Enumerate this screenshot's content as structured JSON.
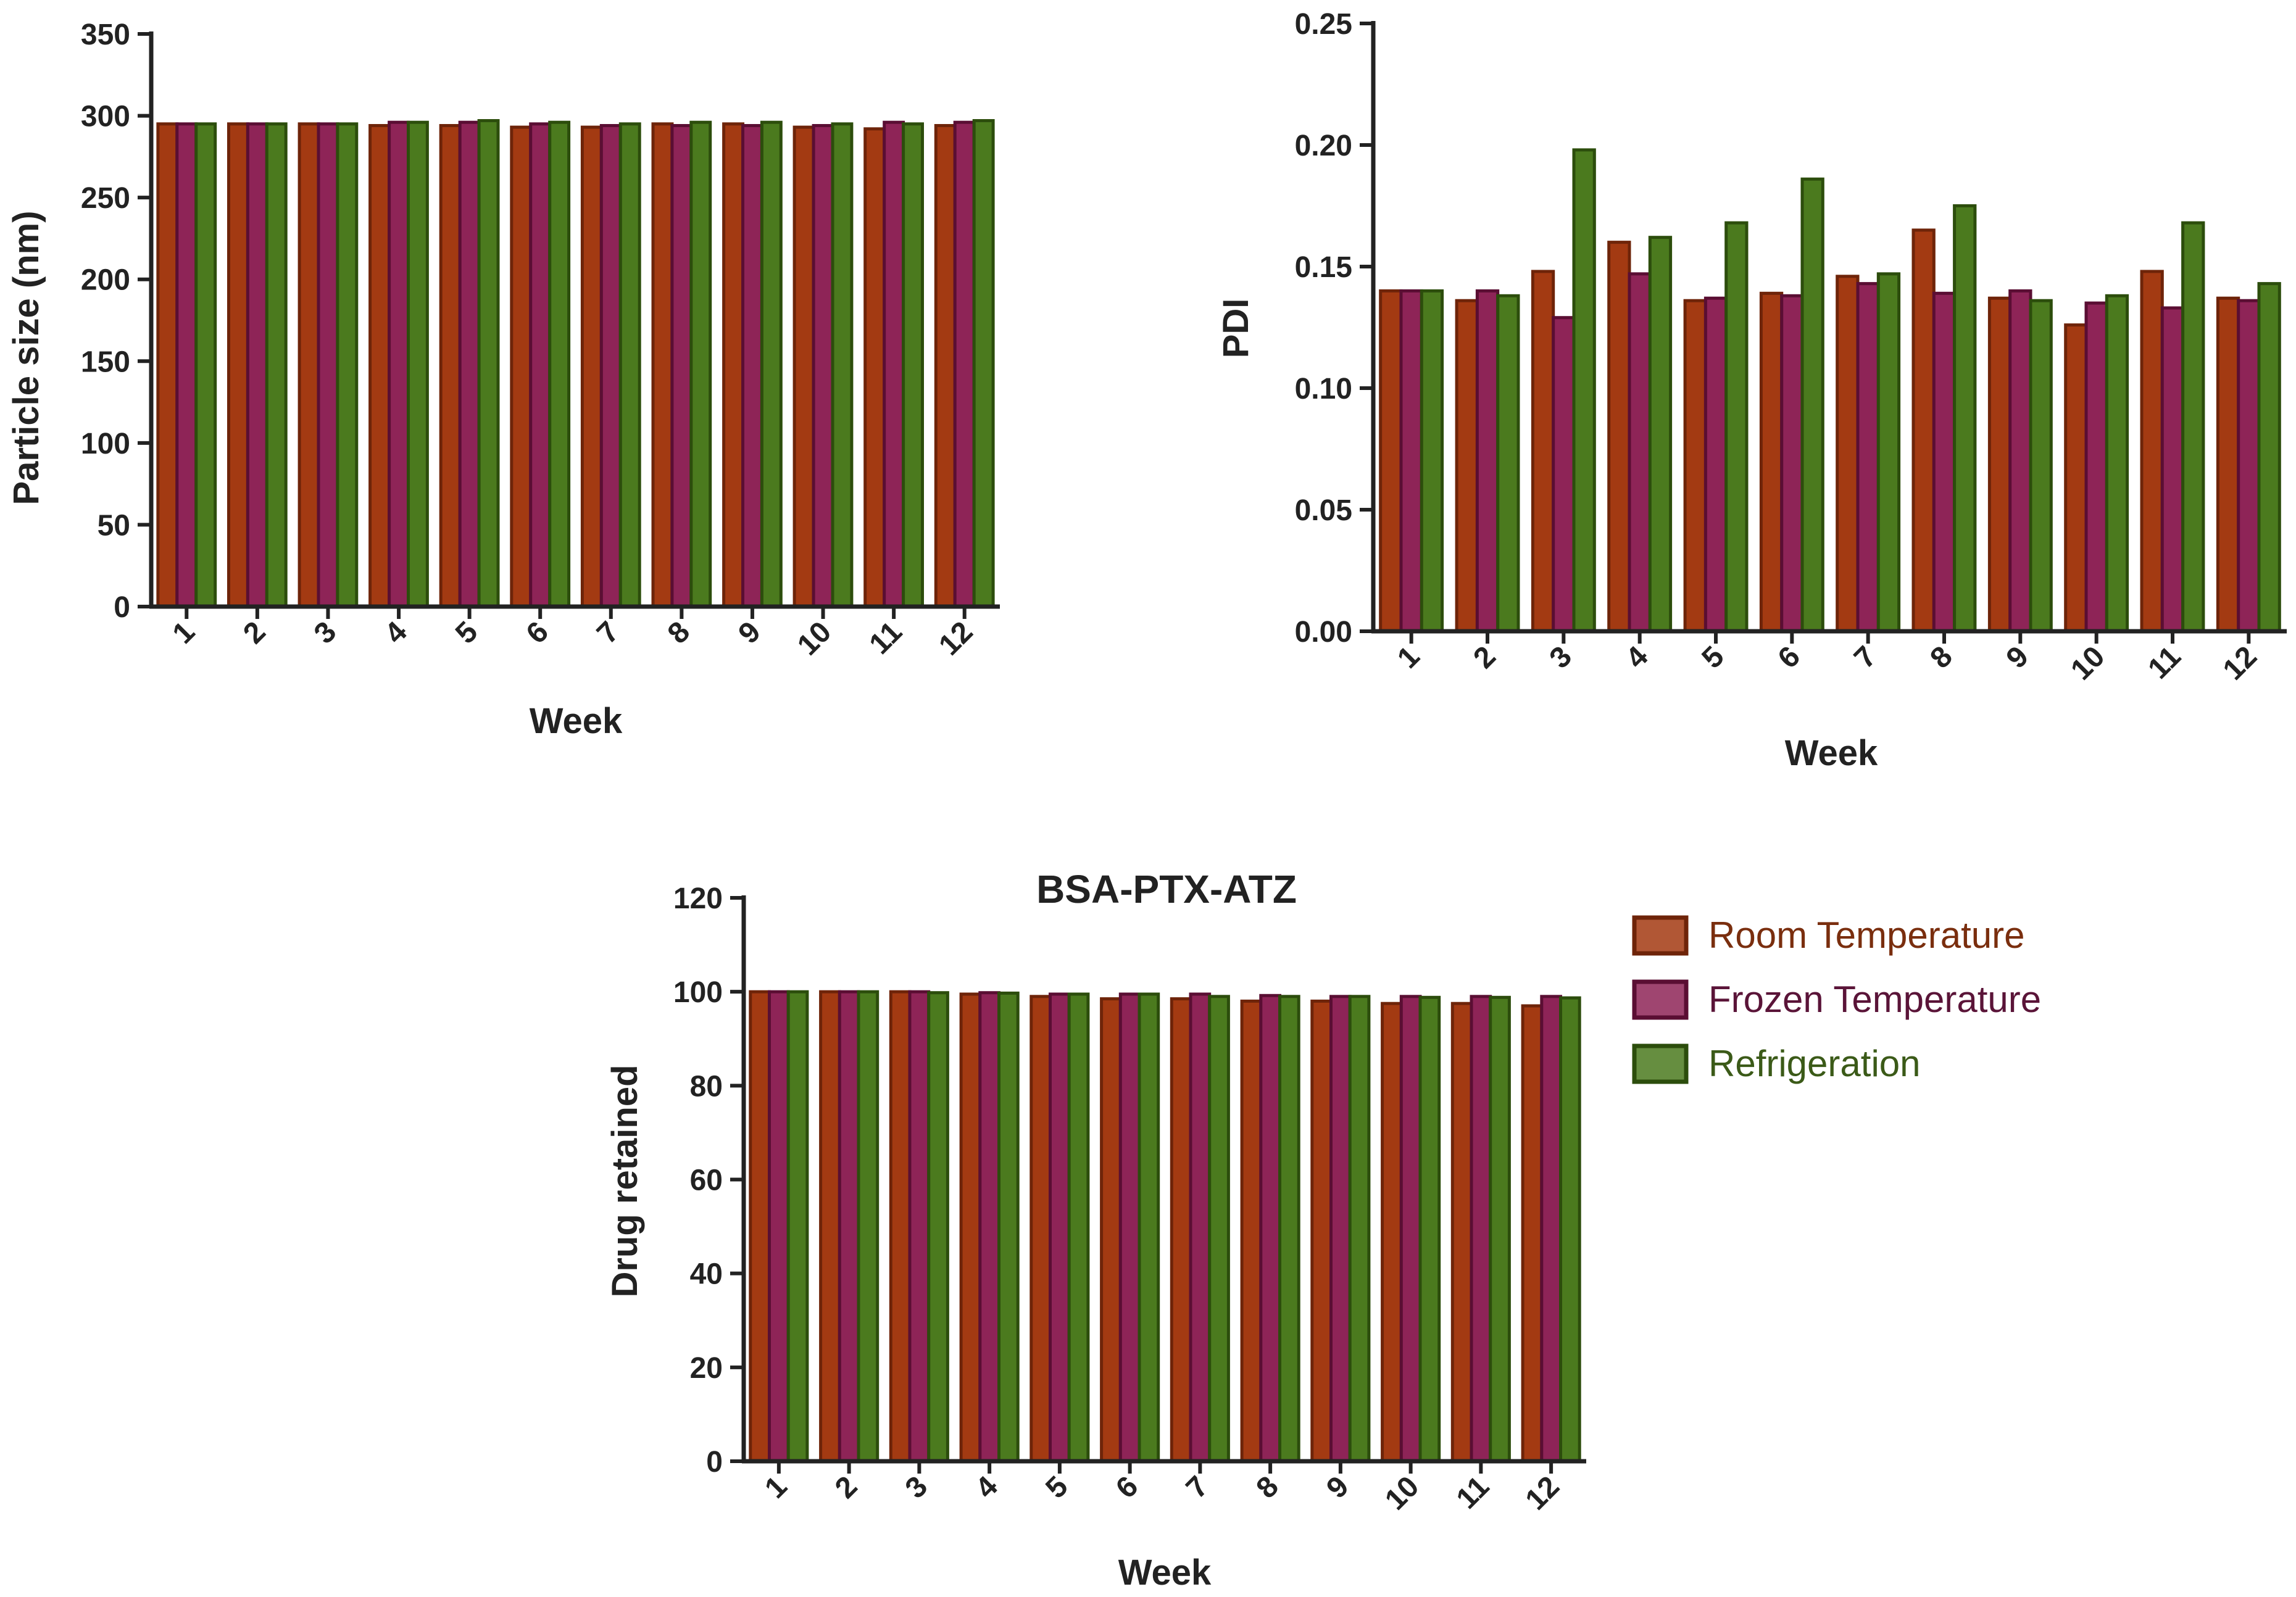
{
  "colors": {
    "room_fill": "#a33a12",
    "room_stroke": "#6e2409",
    "frozen_fill": "#8e2457",
    "frozen_stroke": "#5a0e33",
    "refrig_fill": "#4b7a1e",
    "refrig_stroke": "#2c4d0c",
    "axis": "#222222"
  },
  "legend": [
    {
      "name": "Room Temperature",
      "color_key": "room",
      "text_color": "#7a2e0e"
    },
    {
      "name": "Frozen Temperature",
      "color_key": "frozen",
      "text_color": "#5a1438"
    },
    {
      "name": "Refrigeration",
      "color_key": "refrig",
      "text_color": "#3b5a18"
    }
  ],
  "chart_data": [
    {
      "type": "bar",
      "title": "",
      "xlabel": "Week",
      "ylabel": "Particle size (nm)",
      "ylim": [
        0,
        350
      ],
      "yticks": [
        "0",
        "50",
        "100",
        "150",
        "200",
        "250",
        "300",
        "350"
      ],
      "categories": [
        "1",
        "2",
        "3",
        "4",
        "5",
        "6",
        "7",
        "8",
        "9",
        "10",
        "11",
        "12"
      ],
      "series": [
        {
          "name": "Room Temperature",
          "values": [
            295,
            295,
            295,
            294,
            294,
            293,
            293,
            295,
            295,
            293,
            292,
            294
          ]
        },
        {
          "name": "Frozen Temperature",
          "values": [
            295,
            295,
            295,
            296,
            296,
            295,
            294,
            294,
            294,
            294,
            296,
            296
          ]
        },
        {
          "name": "Refrigeration",
          "values": [
            295,
            295,
            295,
            296,
            297,
            296,
            295,
            296,
            296,
            295,
            295,
            297
          ]
        }
      ]
    },
    {
      "type": "bar",
      "title": "",
      "xlabel": "Week",
      "ylabel": "PDI",
      "ylim": [
        0,
        0.25
      ],
      "yticks": [
        "0.00",
        "0.05",
        "0.10",
        "0.15",
        "0.20",
        "0.25"
      ],
      "categories": [
        "1",
        "2",
        "3",
        "4",
        "5",
        "6",
        "7",
        "8",
        "9",
        "10",
        "11",
        "12"
      ],
      "series": [
        {
          "name": "Room Temperature",
          "values": [
            0.14,
            0.136,
            0.148,
            0.16,
            0.136,
            0.139,
            0.146,
            0.165,
            0.137,
            0.126,
            0.148,
            0.137
          ]
        },
        {
          "name": "Frozen Temperature",
          "values": [
            0.14,
            0.14,
            0.129,
            0.147,
            0.137,
            0.138,
            0.143,
            0.139,
            0.14,
            0.135,
            0.133,
            0.136
          ]
        },
        {
          "name": "Refrigeration",
          "values": [
            0.14,
            0.138,
            0.198,
            0.162,
            0.168,
            0.186,
            0.147,
            0.175,
            0.136,
            0.138,
            0.168,
            0.143
          ]
        }
      ]
    },
    {
      "type": "bar",
      "title": "BSA-PTX-ATZ",
      "xlabel": "Week",
      "ylabel": "Drug retained",
      "ylim": [
        0,
        120
      ],
      "yticks": [
        "0",
        "20",
        "40",
        "60",
        "80",
        "100",
        "120"
      ],
      "categories": [
        "1",
        "2",
        "3",
        "4",
        "5",
        "6",
        "7",
        "8",
        "9",
        "10",
        "11",
        "12"
      ],
      "series": [
        {
          "name": "Room Temperature",
          "values": [
            100,
            100,
            100,
            99.5,
            99,
            98.5,
            98.5,
            98,
            98,
            97.5,
            97.5,
            97
          ]
        },
        {
          "name": "Frozen Temperature",
          "values": [
            100,
            100,
            100,
            99.8,
            99.5,
            99.5,
            99.5,
            99.2,
            99,
            99,
            99,
            99
          ]
        },
        {
          "name": "Refrigeration",
          "values": [
            100,
            100,
            99.8,
            99.7,
            99.5,
            99.5,
            99,
            99,
            99,
            98.8,
            98.8,
            98.7
          ]
        }
      ]
    }
  ]
}
